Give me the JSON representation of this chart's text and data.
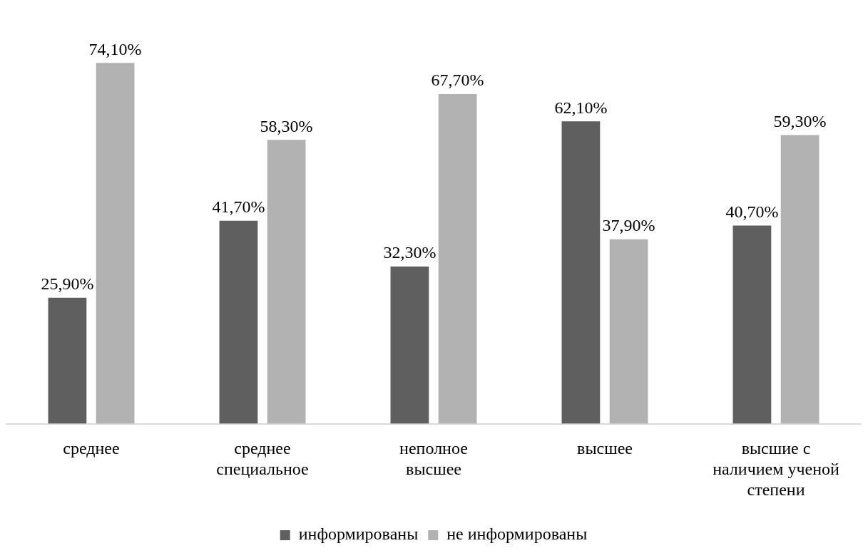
{
  "chart_data": {
    "type": "bar",
    "categories": [
      "среднее",
      "среднее\nспециальное",
      "неполное\nвысшее",
      "высшее",
      "высшие с\nналичием ученой\nстепени"
    ],
    "series": [
      {
        "name": "информированы",
        "color": "#5f5f5f",
        "values": [
          25.9,
          41.7,
          32.3,
          62.1,
          40.7
        ],
        "value_labels": [
          "25,90%",
          "41,70%",
          "32,30%",
          "62,10%",
          "40,70%"
        ]
      },
      {
        "name": "не информированы",
        "color": "#b2b2b2",
        "values": [
          74.1,
          58.3,
          67.7,
          37.9,
          59.3
        ],
        "value_labels": [
          "74,10%",
          "58,30%",
          "67,70%",
          "37,90%",
          "59,30%"
        ]
      }
    ],
    "legend": "bottom",
    "grid": false
  }
}
